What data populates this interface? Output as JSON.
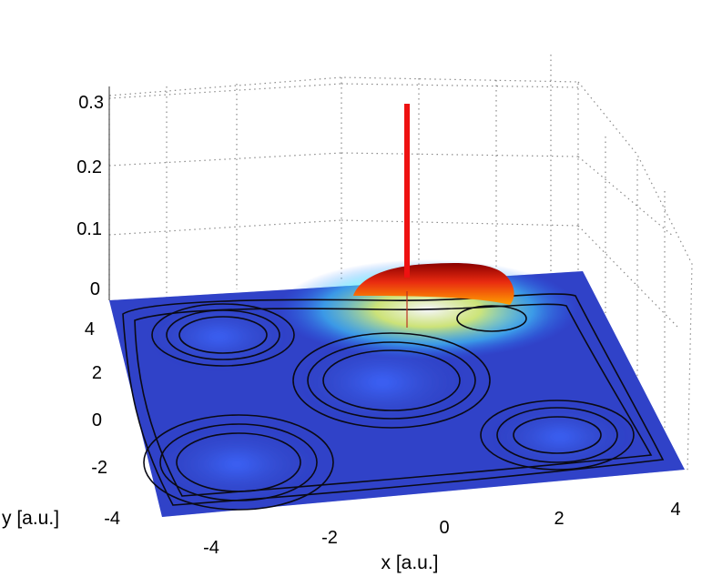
{
  "chart_data": {
    "type": "surface",
    "title": "",
    "xlabel": "x [a.u.]",
    "ylabel": "y [a.u.]",
    "zlabel": "",
    "xlim": [
      -5,
      5
    ],
    "ylim": [
      -5,
      5
    ],
    "zlim": [
      0,
      0.3
    ],
    "x_ticks": [
      -4,
      -2,
      0,
      2,
      4
    ],
    "y_ticks": [
      -4,
      -2,
      0,
      2,
      4
    ],
    "z_ticks": [
      0,
      0.1,
      0.2,
      0.3
    ],
    "x_tick_labels": [
      "-4",
      "-2",
      "0",
      "2",
      "4"
    ],
    "y_tick_labels": [
      "-4",
      "-2",
      "0",
      "2",
      "4"
    ],
    "z_tick_labels": [
      "0",
      "0.1",
      "0.2",
      "0.3"
    ],
    "grid": true,
    "colormap": "jet",
    "wells": [
      {
        "x": -3.5,
        "y": 3.5
      },
      {
        "x": 0,
        "y": 1.5
      },
      {
        "x": 3.5,
        "y": 3.0
      },
      {
        "x": -3.0,
        "y": -2.0
      },
      {
        "x": 3.5,
        "y": -1.8
      }
    ],
    "wavepacket": {
      "x": 0.0,
      "y": 4.2,
      "peak": 0.05
    },
    "spike": {
      "x": 0.0,
      "y": 4.2,
      "height": 0.3,
      "color": "#ee1111"
    }
  }
}
